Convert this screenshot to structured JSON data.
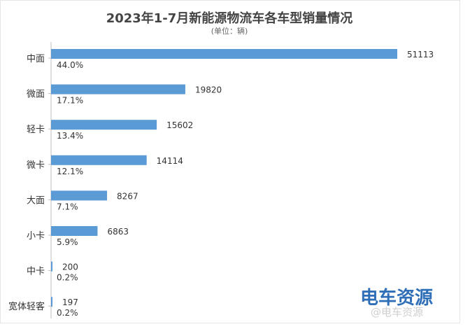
{
  "chart_data": {
    "type": "bar",
    "orientation": "horizontal",
    "title": "2023年1-7月新能源物流车各车型销量情况",
    "subtitle": "(单位：辆)",
    "categories": [
      "中面",
      "微面",
      "轻卡",
      "微卡",
      "大面",
      "小卡",
      "中卡",
      "宽体轻客"
    ],
    "values": [
      51113,
      19820,
      15602,
      14114,
      8267,
      6863,
      200,
      197
    ],
    "shares": [
      "44.0%",
      "17.1%",
      "13.4%",
      "12.1%",
      "7.1%",
      "5.9%",
      "0.2%",
      "0.2%"
    ],
    "bar_color": "#5b9bd5",
    "xlim": [
      0,
      51113
    ],
    "grid": false,
    "legend": "none"
  },
  "watermark": {
    "brand": "电车资源",
    "handle": "@电车资源"
  }
}
